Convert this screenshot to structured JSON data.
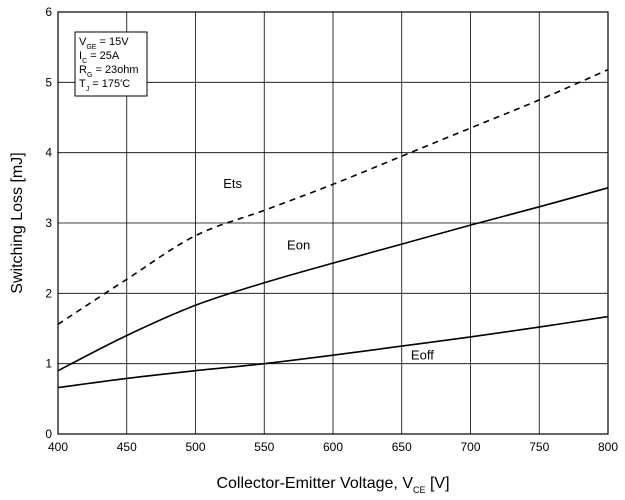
{
  "chart_data": {
    "type": "line",
    "title": "",
    "xlabel": {
      "main": "Collector-Emitter Voltage, V",
      "sub": "CE",
      "unit": "[V]"
    },
    "ylabel": "Switching Loss [mJ]",
    "xlim": [
      400,
      800
    ],
    "ylim": [
      0,
      6
    ],
    "x_ticks": [
      "400",
      "450",
      "500",
      "550",
      "600",
      "650",
      "700",
      "750",
      "800"
    ],
    "y_ticks": [
      "0",
      "1",
      "2",
      "3",
      "4",
      "5",
      "6"
    ],
    "grid": true,
    "conditions": [
      {
        "main": "V",
        "sub": "GE",
        "rest": " = 15V"
      },
      {
        "main": "I",
        "sub": "C",
        "rest": " = 25A"
      },
      {
        "main": "R",
        "sub": "G",
        "rest": " = 23ohm"
      },
      {
        "main": "T",
        "sub": "J",
        "rest": " = 175'C"
      }
    ],
    "series": [
      {
        "name": "Ets",
        "style": "dashed",
        "x": [
          400,
          450,
          500,
          550,
          600,
          650,
          700,
          750,
          800
        ],
        "values": [
          1.56,
          2.2,
          2.82,
          3.18,
          3.55,
          3.95,
          4.35,
          4.75,
          5.18
        ]
      },
      {
        "name": "Eon",
        "style": "solid",
        "x": [
          400,
          450,
          500,
          550,
          600,
          650,
          700,
          750,
          800
        ],
        "values": [
          0.9,
          1.4,
          1.83,
          2.15,
          2.43,
          2.7,
          2.97,
          3.23,
          3.5
        ]
      },
      {
        "name": "Eoff",
        "style": "solid",
        "x": [
          400,
          450,
          500,
          550,
          600,
          650,
          700,
          750,
          800
        ],
        "values": [
          0.66,
          0.79,
          0.9,
          1.0,
          1.12,
          1.25,
          1.38,
          1.52,
          1.67
        ]
      }
    ],
    "labels": [
      {
        "text": "Ets",
        "x": 527,
        "y": 3.5
      },
      {
        "text": "Eon",
        "x": 575,
        "y": 2.62
      },
      {
        "text": "Eoff",
        "x": 665,
        "y": 1.06
      }
    ]
  }
}
